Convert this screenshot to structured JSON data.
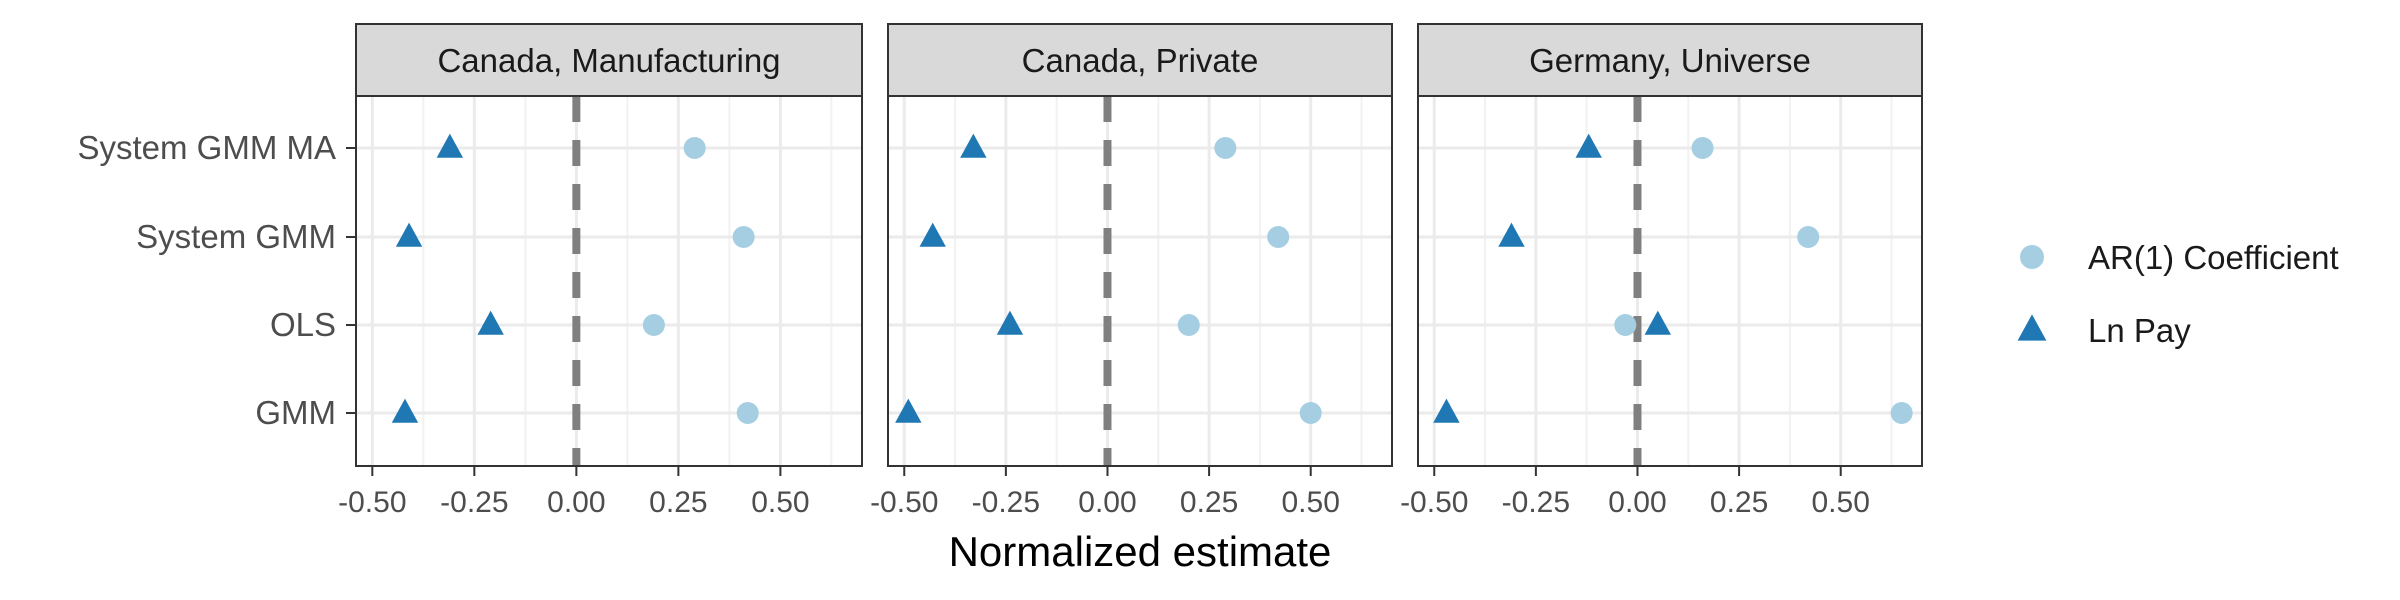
{
  "chart_data": {
    "type": "scatter",
    "xlabel": "Normalized estimate",
    "ylabel": "",
    "categories": [
      "GMM",
      "OLS",
      "System GMM",
      "System GMM MA"
    ],
    "x_ticks": [
      -0.5,
      -0.25,
      0.0,
      0.25,
      0.5
    ],
    "x_tick_labels": [
      "-0.50",
      "-0.25",
      "0.00",
      "0.25",
      "0.50"
    ],
    "reference_line": 0,
    "grid": true,
    "legend_position": "right",
    "series": [
      {
        "name": "AR(1) Coefficient",
        "shape": "circle",
        "color": "#a6cee3"
      },
      {
        "name": "Ln Pay",
        "shape": "triangle",
        "color": "#1f78b4"
      }
    ],
    "panels": [
      {
        "title": "Canada, Manufacturing",
        "xlim": [
          -0.54,
          0.7
        ],
        "points": {
          "AR(1) Coefficient": {
            "System GMM MA": 0.29,
            "System GMM": 0.41,
            "OLS": 0.19,
            "GMM": 0.42
          },
          "Ln Pay": {
            "System GMM MA": -0.31,
            "System GMM": -0.41,
            "OLS": -0.21,
            "GMM": -0.42
          }
        }
      },
      {
        "title": "Canada, Private",
        "xlim": [
          -0.54,
          0.7
        ],
        "points": {
          "AR(1) Coefficient": {
            "System GMM MA": 0.29,
            "System GMM": 0.42,
            "OLS": 0.2,
            "GMM": 0.5
          },
          "Ln Pay": {
            "System GMM MA": -0.33,
            "System GMM": -0.43,
            "OLS": -0.24,
            "GMM": -0.49
          }
        }
      },
      {
        "title": "Germany, Universe",
        "xlim": [
          -0.54,
          0.7
        ],
        "points": {
          "AR(1) Coefficient": {
            "System GMM MA": 0.16,
            "System GMM": 0.42,
            "OLS": -0.03,
            "GMM": 0.65
          },
          "Ln Pay": {
            "System GMM MA": -0.12,
            "System GMM": -0.31,
            "OLS": 0.05,
            "GMM": -0.47
          }
        }
      }
    ]
  }
}
